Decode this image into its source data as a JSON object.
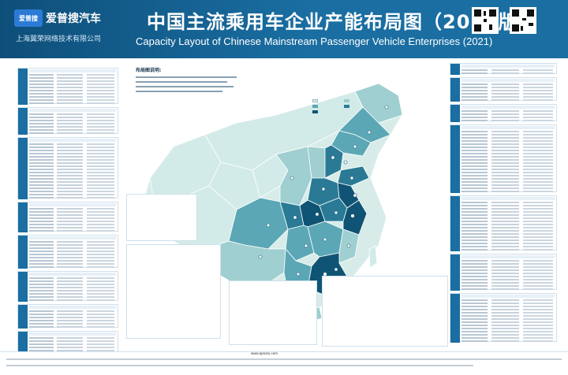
{
  "header": {
    "logo_badge": "爱普搜",
    "brand": "爱普搜汽车",
    "company": "上海翼荣网络技术有限公司",
    "title_cn": "中国主流乘用车企业产能布局图（2021版）",
    "title_en": "Capacity Layout of Chinese Mainstream Passenger Vehicle Enterprises (2021)"
  },
  "map": {
    "legend_title": "布局图说明:",
    "capacity_legend_title": "",
    "colors": {
      "level1": "#d3ebe8",
      "level2": "#9fcfd0",
      "level3": "#5ca7b6",
      "level4": "#2a7a95",
      "level5": "#0f5474",
      "border": "#ffffff",
      "background_land": "#d7ece9"
    }
  },
  "colors": {
    "header": "#1a6ea2",
    "tag": "#1a6ea2"
  },
  "footer": {
    "contact": "www.apsoto.com"
  }
}
